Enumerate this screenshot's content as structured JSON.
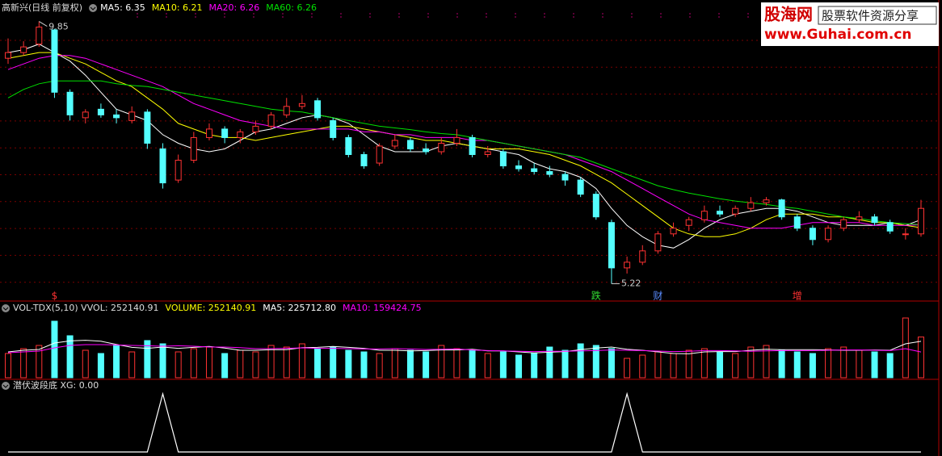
{
  "chart_data": {
    "type": "candlestick",
    "title": "高新兴(日线 前复权)",
    "legend": [
      {
        "text": "MA5: 6.35",
        "color": "#ffffff"
      },
      {
        "text": "MA10: 6.21",
        "color": "#ffff00"
      },
      {
        "text": "MA20: 6.26",
        "color": "#ff00ff"
      },
      {
        "text": "MA60: 6.26",
        "color": "#00e000"
      }
    ],
    "ylim": [
      5,
      10
    ],
    "up_color": "#ff3232",
    "down_color": "#54ffff",
    "candles": [
      [
        9.2,
        9.55,
        9.1,
        9.3
      ],
      [
        9.3,
        9.5,
        9.25,
        9.4
      ],
      [
        9.45,
        9.85,
        9.4,
        9.75
      ],
      [
        9.7,
        9.72,
        8.5,
        8.6
      ],
      [
        8.6,
        8.65,
        8.1,
        8.2
      ],
      [
        8.15,
        8.3,
        8.05,
        8.25
      ],
      [
        8.3,
        8.4,
        8.15,
        8.2
      ],
      [
        8.2,
        8.3,
        8.05,
        8.15
      ],
      [
        8.1,
        8.35,
        8.05,
        8.25
      ],
      [
        8.25,
        8.3,
        7.6,
        7.7
      ],
      [
        7.6,
        7.7,
        6.9,
        7.0
      ],
      [
        7.05,
        7.5,
        7.0,
        7.4
      ],
      [
        7.4,
        7.9,
        7.35,
        7.8
      ],
      [
        7.8,
        8.05,
        7.75,
        7.95
      ],
      [
        7.95,
        8.0,
        7.7,
        7.8
      ],
      [
        7.8,
        7.95,
        7.7,
        7.9
      ],
      [
        7.9,
        8.1,
        7.85,
        8.0
      ],
      [
        8.0,
        8.25,
        7.95,
        8.2
      ],
      [
        8.2,
        8.5,
        8.15,
        8.35
      ],
      [
        8.35,
        8.55,
        8.3,
        8.4
      ],
      [
        8.45,
        8.5,
        8.1,
        8.15
      ],
      [
        8.1,
        8.15,
        7.75,
        7.8
      ],
      [
        7.8,
        7.85,
        7.45,
        7.5
      ],
      [
        7.5,
        7.55,
        7.25,
        7.3
      ],
      [
        7.35,
        7.7,
        7.3,
        7.65
      ],
      [
        7.65,
        7.85,
        7.6,
        7.75
      ],
      [
        7.75,
        7.8,
        7.55,
        7.6
      ],
      [
        7.6,
        7.7,
        7.5,
        7.55
      ],
      [
        7.55,
        7.8,
        7.5,
        7.7
      ],
      [
        7.7,
        7.95,
        7.65,
        7.8
      ],
      [
        7.8,
        7.85,
        7.45,
        7.5
      ],
      [
        7.5,
        7.65,
        7.45,
        7.55
      ],
      [
        7.55,
        7.6,
        7.25,
        7.3
      ],
      [
        7.3,
        7.4,
        7.2,
        7.25
      ],
      [
        7.25,
        7.35,
        7.15,
        7.2
      ],
      [
        7.2,
        7.3,
        7.1,
        7.15
      ],
      [
        7.15,
        7.2,
        6.95,
        7.05
      ],
      [
        7.05,
        7.1,
        6.75,
        6.8
      ],
      [
        6.8,
        6.85,
        6.35,
        6.4
      ],
      [
        6.3,
        6.35,
        5.22,
        5.5
      ],
      [
        5.5,
        5.7,
        5.4,
        5.6
      ],
      [
        5.6,
        5.9,
        5.55,
        5.8
      ],
      [
        5.8,
        6.15,
        5.75,
        6.1
      ],
      [
        6.1,
        6.3,
        6.05,
        6.2
      ],
      [
        6.25,
        6.4,
        6.15,
        6.35
      ],
      [
        6.35,
        6.6,
        6.3,
        6.5
      ],
      [
        6.5,
        6.6,
        6.4,
        6.45
      ],
      [
        6.45,
        6.6,
        6.4,
        6.55
      ],
      [
        6.55,
        6.75,
        6.5,
        6.65
      ],
      [
        6.65,
        6.75,
        6.6,
        6.7
      ],
      [
        6.7,
        6.72,
        6.35,
        6.4
      ],
      [
        6.4,
        6.45,
        6.15,
        6.2
      ],
      [
        6.2,
        6.25,
        5.9,
        6.0
      ],
      [
        6.0,
        6.25,
        5.95,
        6.2
      ],
      [
        6.2,
        6.4,
        6.15,
        6.35
      ],
      [
        6.35,
        6.5,
        6.3,
        6.4
      ],
      [
        6.4,
        6.45,
        6.25,
        6.3
      ],
      [
        6.3,
        6.35,
        6.1,
        6.15
      ],
      [
        6.1,
        6.2,
        6.0,
        6.1
      ],
      [
        6.1,
        6.7,
        6.05,
        6.55
      ]
    ],
    "series": [
      {
        "color": "#ffffff",
        "values": [
          9.3,
          9.35,
          9.45,
          9.3,
          9.15,
          8.9,
          8.6,
          8.3,
          8.2,
          8.1,
          7.85,
          7.7,
          7.6,
          7.55,
          7.6,
          7.75,
          7.9,
          7.95,
          8.05,
          8.15,
          8.2,
          8.15,
          8.05,
          7.85,
          7.65,
          7.55,
          7.55,
          7.55,
          7.65,
          7.7,
          7.65,
          7.6,
          7.55,
          7.5,
          7.35,
          7.25,
          7.2,
          7.1,
          6.9,
          6.55,
          6.25,
          6.05,
          5.9,
          5.85,
          6.0,
          6.2,
          6.35,
          6.45,
          6.5,
          6.55,
          6.55,
          6.5,
          6.4,
          6.3,
          6.25,
          6.25,
          6.25,
          6.3,
          6.25,
          6.35
        ]
      },
      {
        "color": "#ffff00",
        "values": [
          9.2,
          9.25,
          9.3,
          9.3,
          9.2,
          9.1,
          8.95,
          8.8,
          8.7,
          8.5,
          8.3,
          8.05,
          7.95,
          7.85,
          7.8,
          7.8,
          7.75,
          7.8,
          7.85,
          7.9,
          7.95,
          8.0,
          8.0,
          7.95,
          7.9,
          7.85,
          7.8,
          7.75,
          7.75,
          7.7,
          7.65,
          7.6,
          7.6,
          7.6,
          7.55,
          7.5,
          7.4,
          7.3,
          7.15,
          7.0,
          6.8,
          6.6,
          6.4,
          6.2,
          6.1,
          6.05,
          6.05,
          6.1,
          6.2,
          6.35,
          6.45,
          6.45,
          6.45,
          6.4,
          6.4,
          6.35,
          6.3,
          6.3,
          6.25,
          6.21
        ]
      },
      {
        "color": "#ff00ff",
        "values": [
          9.0,
          9.1,
          9.2,
          9.25,
          9.25,
          9.2,
          9.1,
          9.0,
          8.9,
          8.8,
          8.7,
          8.55,
          8.4,
          8.3,
          8.2,
          8.1,
          8.05,
          8.0,
          7.95,
          7.95,
          7.95,
          7.95,
          7.95,
          7.9,
          7.9,
          7.85,
          7.85,
          7.8,
          7.8,
          7.8,
          7.75,
          7.75,
          7.7,
          7.65,
          7.6,
          7.55,
          7.5,
          7.4,
          7.3,
          7.2,
          7.05,
          6.9,
          6.75,
          6.6,
          6.45,
          6.35,
          6.3,
          6.25,
          6.2,
          6.2,
          6.2,
          6.25,
          6.3,
          6.3,
          6.3,
          6.3,
          6.25,
          6.25,
          6.25,
          6.26
        ]
      },
      {
        "color": "#00e000",
        "values": [
          8.5,
          8.65,
          8.75,
          8.8,
          8.8,
          8.8,
          8.8,
          8.75,
          8.72,
          8.7,
          8.65,
          8.6,
          8.55,
          8.5,
          8.45,
          8.4,
          8.35,
          8.3,
          8.27,
          8.25,
          8.2,
          8.15,
          8.1,
          8.05,
          8.0,
          7.97,
          7.94,
          7.9,
          7.87,
          7.85,
          7.8,
          7.75,
          7.7,
          7.65,
          7.6,
          7.55,
          7.5,
          7.45,
          7.35,
          7.25,
          7.15,
          7.05,
          6.95,
          6.88,
          6.82,
          6.77,
          6.72,
          6.68,
          6.65,
          6.62,
          6.58,
          6.55,
          6.5,
          6.45,
          6.4,
          6.37,
          6.33,
          6.3,
          6.28,
          6.26
        ]
      }
    ],
    "events": [
      null,
      null,
      null,
      {
        "label": "$",
        "color": "#ff3232"
      },
      null,
      null,
      null,
      null,
      null,
      null,
      null,
      null,
      null,
      null,
      null,
      null,
      null,
      null,
      null,
      null,
      null,
      null,
      null,
      null,
      null,
      null,
      null,
      null,
      null,
      null,
      null,
      null,
      null,
      null,
      null,
      null,
      null,
      null,
      {
        "label": "跌",
        "color": "#33dd33"
      },
      null,
      null,
      null,
      {
        "label": "财",
        "color": "#5a8cff"
      },
      null,
      null,
      null,
      null,
      null,
      null,
      null,
      null,
      {
        "label": "增",
        "color": "#ff3232"
      },
      null,
      null,
      null,
      null,
      null,
      null,
      null,
      null
    ],
    "volume": {
      "title": "VOL-TDX(5,10) VVOL: 252140.91",
      "legend": [
        {
          "text": "VOLUME: 252140.91",
          "color": "#ffff00"
        },
        {
          "text": "MA5: 225712.80",
          "color": "#ffffff"
        },
        {
          "text": "MA10: 159424.75",
          "color": "#ff00ff"
        }
      ],
      "ylim": [
        0,
        400000
      ],
      "values": [
        150000,
        180000,
        200000,
        350000,
        260000,
        170000,
        150000,
        200000,
        160000,
        230000,
        210000,
        160000,
        180000,
        190000,
        150000,
        170000,
        160000,
        200000,
        190000,
        210000,
        180000,
        190000,
        170000,
        160000,
        150000,
        180000,
        170000,
        160000,
        200000,
        180000,
        170000,
        150000,
        160000,
        140000,
        150000,
        190000,
        170000,
        210000,
        200000,
        180000,
        120000,
        140000,
        160000,
        150000,
        170000,
        180000,
        160000,
        150000,
        190000,
        200000,
        170000,
        160000,
        150000,
        180000,
        190000,
        170000,
        160000,
        150000,
        370000,
        252140.91
      ],
      "series": [
        {
          "color": "#ffffff",
          "values": [
            160000,
            170000,
            175000,
            215000,
            228000,
            232000,
            226000,
            206000,
            188000,
            182000,
            190000,
            182000,
            188000,
            194000,
            184000,
            170000,
            170000,
            174000,
            174000,
            186000,
            188000,
            194000,
            188000,
            182000,
            170000,
            170000,
            166000,
            168000,
            172000,
            172000,
            176000,
            166000,
            166000,
            160000,
            154000,
            158000,
            162000,
            174000,
            184000,
            190000,
            176000,
            170000,
            160000,
            150000,
            148000,
            160000,
            162000,
            162000,
            170000,
            176000,
            174000,
            174000,
            174000,
            172000,
            170000,
            170000,
            172000,
            170000,
            210000,
            225712.8
          ]
        },
        {
          "color": "#ff00ff",
          "values": [
            155000,
            160000,
            165000,
            185000,
            200000,
            205000,
            205000,
            203000,
            200000,
            198000,
            195000,
            198000,
            195000,
            190000,
            190000,
            186000,
            180000,
            180000,
            182000,
            185000,
            182000,
            182000,
            180000,
            178000,
            178000,
            180000,
            178000,
            175000,
            176000,
            178000,
            172000,
            168000,
            166000,
            164000,
            162000,
            164000,
            164000,
            166000,
            168000,
            172000,
            170000,
            168000,
            165000,
            162000,
            164000,
            168000,
            168000,
            166000,
            164000,
            166000,
            168000,
            168000,
            168000,
            170000,
            172000,
            172000,
            170000,
            168000,
            180000,
            159424.75
          ]
        }
      ]
    },
    "xg": {
      "title": "潜伏波段底 XG: 0.00",
      "ylim": [
        0,
        1
      ],
      "color": "#ffffff",
      "values": [
        0,
        0,
        0,
        0,
        0,
        0,
        0,
        0,
        0,
        0,
        1,
        0,
        0,
        0,
        0,
        0,
        0,
        0,
        0,
        0,
        0,
        0,
        0,
        0,
        0,
        0,
        0,
        0,
        0,
        0,
        0,
        0,
        0,
        0,
        0,
        0,
        0,
        0,
        0,
        0,
        1,
        0,
        0,
        0,
        0,
        0,
        0,
        0,
        0,
        0,
        0,
        0,
        0,
        0,
        0,
        0,
        0,
        0,
        0,
        0
      ]
    }
  },
  "watermark": {
    "brand": "股海网",
    "slogan": "股票软件资源分享",
    "url": "www.Guhai.com.cn"
  }
}
